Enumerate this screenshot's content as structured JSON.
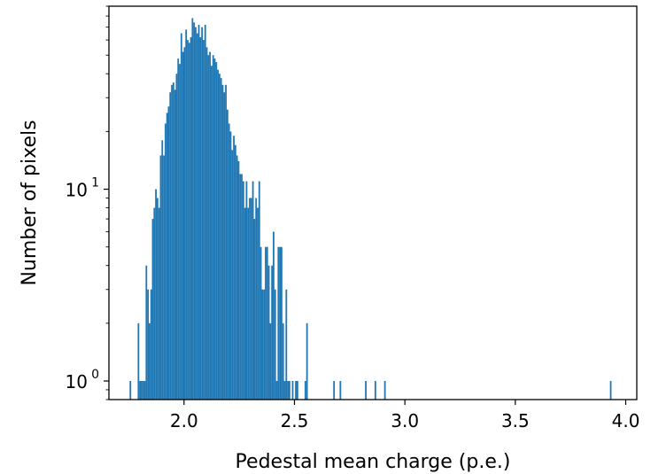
{
  "chart_data": {
    "type": "histogram",
    "title": "",
    "xlabel": "Pedestal mean charge (p.e.)",
    "ylabel": "Number of pixels",
    "xlim": [
      1.66,
      4.05
    ],
    "ylim": [
      0.8,
      90
    ],
    "yscale": "log",
    "grid": false,
    "legend": "none",
    "bar_color": "#1f77b4",
    "bin_width": 0.0072,
    "xticks": [
      2.0,
      2.5,
      3.0,
      3.5,
      4.0
    ],
    "xtick_labels": [
      "2.0",
      "2.5",
      "3.0",
      "3.5",
      "4.0"
    ],
    "yticks": [
      {
        "value": 1,
        "base": "10",
        "exp": "0"
      },
      {
        "value": 10,
        "base": "10",
        "exp": "1"
      }
    ],
    "bins": [
      [
        1.7536,
        1
      ],
      [
        1.79,
        2
      ],
      [
        1.7972,
        1
      ],
      [
        1.8044,
        1
      ],
      [
        1.8116,
        1
      ],
      [
        1.8188,
        1
      ],
      [
        1.826,
        4
      ],
      [
        1.8332,
        3
      ],
      [
        1.8404,
        2
      ],
      [
        1.8476,
        3
      ],
      [
        1.8548,
        7
      ],
      [
        1.862,
        8
      ],
      [
        1.8692,
        10
      ],
      [
        1.8764,
        9
      ],
      [
        1.8836,
        8
      ],
      [
        1.8908,
        15
      ],
      [
        1.898,
        18
      ],
      [
        1.9052,
        15
      ],
      [
        1.9124,
        22
      ],
      [
        1.9196,
        25
      ],
      [
        1.9268,
        27
      ],
      [
        1.934,
        32
      ],
      [
        1.9412,
        35
      ],
      [
        1.9484,
        36
      ],
      [
        1.9556,
        33
      ],
      [
        1.9628,
        40
      ],
      [
        1.97,
        48
      ],
      [
        1.9772,
        45
      ],
      [
        1.9844,
        65
      ],
      [
        1.9916,
        52
      ],
      [
        1.9988,
        55
      ],
      [
        2.006,
        68
      ],
      [
        2.0132,
        60
      ],
      [
        2.0204,
        58
      ],
      [
        2.0276,
        62
      ],
      [
        2.0348,
        78
      ],
      [
        2.042,
        74
      ],
      [
        2.0492,
        70
      ],
      [
        2.0564,
        65
      ],
      [
        2.0636,
        72
      ],
      [
        2.0708,
        62
      ],
      [
        2.078,
        70
      ],
      [
        2.0852,
        60
      ],
      [
        2.0924,
        72
      ],
      [
        2.0996,
        55
      ],
      [
        2.1068,
        50
      ],
      [
        2.114,
        52
      ],
      [
        2.1212,
        44
      ],
      [
        2.1284,
        50
      ],
      [
        2.1356,
        48
      ],
      [
        2.1428,
        46
      ],
      [
        2.15,
        42
      ],
      [
        2.1572,
        40
      ],
      [
        2.1644,
        38
      ],
      [
        2.1716,
        35
      ],
      [
        2.1788,
        32
      ],
      [
        2.186,
        35
      ],
      [
        2.1932,
        26
      ],
      [
        2.2004,
        22
      ],
      [
        2.2076,
        20
      ],
      [
        2.2148,
        16
      ],
      [
        2.222,
        19
      ],
      [
        2.2292,
        17
      ],
      [
        2.2364,
        15
      ],
      [
        2.2436,
        14
      ],
      [
        2.2508,
        12
      ],
      [
        2.258,
        12
      ],
      [
        2.2652,
        11
      ],
      [
        2.2724,
        8
      ],
      [
        2.2796,
        11
      ],
      [
        2.2868,
        8
      ],
      [
        2.294,
        9
      ],
      [
        2.3012,
        9
      ],
      [
        2.3084,
        11
      ],
      [
        2.3156,
        7
      ],
      [
        2.3228,
        9
      ],
      [
        2.33,
        8
      ],
      [
        2.3372,
        11
      ],
      [
        2.3444,
        5
      ],
      [
        2.3516,
        3
      ],
      [
        2.3588,
        3
      ],
      [
        2.366,
        5
      ],
      [
        2.3732,
        5
      ],
      [
        2.3804,
        4
      ],
      [
        2.3876,
        2
      ],
      [
        2.3948,
        4
      ],
      [
        2.402,
        6
      ],
      [
        2.4092,
        3
      ],
      [
        2.4164,
        1
      ],
      [
        2.4236,
        5
      ],
      [
        2.4308,
        5
      ],
      [
        2.438,
        5
      ],
      [
        2.4452,
        2
      ],
      [
        2.4524,
        1
      ],
      [
        2.4596,
        3
      ],
      [
        2.4668,
        1
      ],
      [
        2.474,
        1
      ],
      [
        2.4884,
        1
      ],
      [
        2.5028,
        1
      ],
      [
        2.51,
        1
      ],
      [
        2.546,
        1
      ],
      [
        2.5532,
        2
      ],
      [
        2.6756,
        1
      ],
      [
        2.7044,
        1
      ],
      [
        2.8196,
        1
      ],
      [
        2.8628,
        1
      ],
      [
        2.906,
        1
      ],
      [
        3.9284,
        1
      ]
    ]
  }
}
